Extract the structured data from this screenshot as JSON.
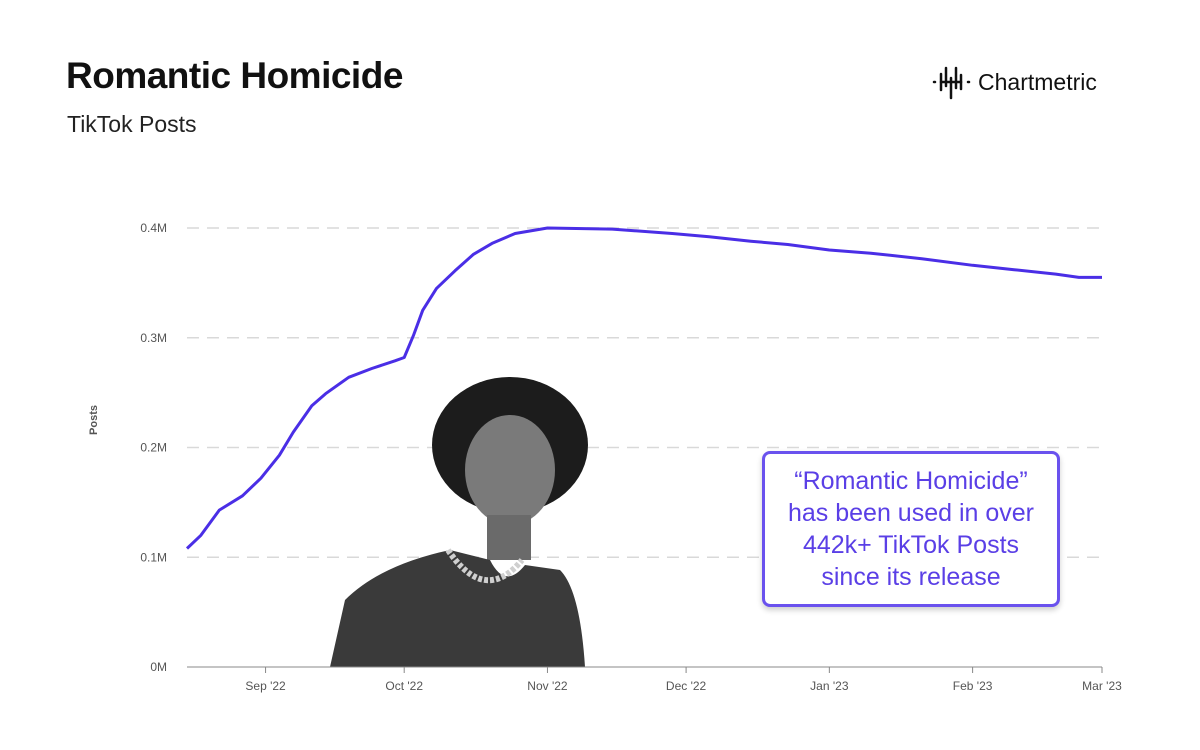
{
  "header": {
    "title": "Romantic Homicide",
    "subtitle": "TikTok Posts"
  },
  "brand": {
    "name": "Chartmetric",
    "icon": "waveform-logo-icon"
  },
  "annotation": {
    "text": "“Romantic Homicide” has been used in over 442k+ TikTok Posts since its release"
  },
  "colors": {
    "line": "#4a2ee6",
    "annotation": "#6a52ee",
    "grid": "#d9d9d9"
  },
  "chart_data": {
    "type": "line",
    "title": "Romantic Homicide",
    "subtitle": "TikTok Posts",
    "ylabel": "Posts",
    "xlabel": "",
    "ylim": [
      0,
      400000
    ],
    "xlim": [
      "2022-08-15",
      "2023-03-01"
    ],
    "grid": "horizontal dashed",
    "yticks": [
      {
        "v": 0,
        "label": "0M"
      },
      {
        "v": 100000,
        "label": "0.1M"
      },
      {
        "v": 200000,
        "label": "0.2M"
      },
      {
        "v": 300000,
        "label": "0.3M"
      },
      {
        "v": 400000,
        "label": "0.4M"
      }
    ],
    "xticks": [
      {
        "d": "2022-09-01",
        "label": "Sep '22"
      },
      {
        "d": "2022-10-01",
        "label": "Oct '22"
      },
      {
        "d": "2022-11-01",
        "label": "Nov '22"
      },
      {
        "d": "2022-12-01",
        "label": "Dec '22"
      },
      {
        "d": "2023-01-01",
        "label": "Jan '23"
      },
      {
        "d": "2023-02-01",
        "label": "Feb '23"
      },
      {
        "d": "2023-03-01",
        "label": "Mar '23"
      }
    ],
    "series": [
      {
        "points": [
          [
            "2022-08-15",
            108000
          ],
          [
            "2022-08-18",
            120000
          ],
          [
            "2022-08-22",
            143000
          ],
          [
            "2022-08-27",
            156000
          ],
          [
            "2022-08-31",
            172000
          ],
          [
            "2022-09-04",
            193000
          ],
          [
            "2022-09-07",
            214000
          ],
          [
            "2022-09-11",
            238000
          ],
          [
            "2022-09-14",
            249000
          ],
          [
            "2022-09-19",
            264000
          ],
          [
            "2022-09-24",
            272000
          ],
          [
            "2022-09-29",
            279000
          ],
          [
            "2022-10-01",
            282000
          ],
          [
            "2022-10-03",
            302000
          ],
          [
            "2022-10-05",
            325000
          ],
          [
            "2022-10-08",
            345000
          ],
          [
            "2022-10-12",
            361000
          ],
          [
            "2022-10-16",
            376000
          ],
          [
            "2022-10-20",
            386000
          ],
          [
            "2022-10-25",
            395000
          ],
          [
            "2022-11-01",
            400000
          ],
          [
            "2022-11-15",
            399000
          ],
          [
            "2022-11-28",
            395000
          ],
          [
            "2022-12-06",
            392000
          ],
          [
            "2022-12-15",
            388000
          ],
          [
            "2022-12-23",
            385000
          ],
          [
            "2023-01-01",
            380000
          ],
          [
            "2023-01-10",
            377000
          ],
          [
            "2023-01-21",
            372000
          ],
          [
            "2023-02-01",
            366000
          ],
          [
            "2023-02-10",
            362000
          ],
          [
            "2023-02-19",
            358000
          ],
          [
            "2023-02-24",
            355000
          ],
          [
            "2023-03-01",
            355000
          ]
        ]
      }
    ]
  }
}
